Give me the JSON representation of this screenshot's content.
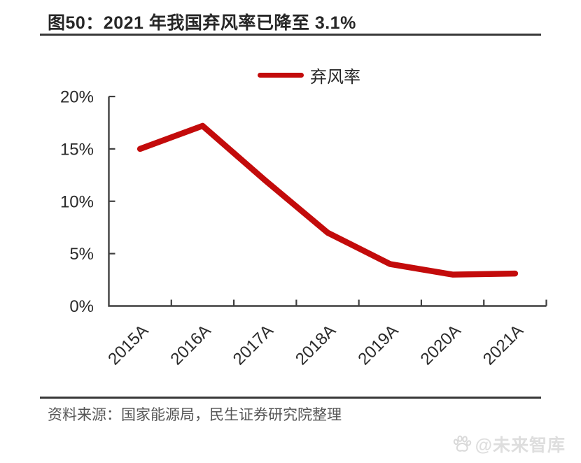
{
  "title": "图50：2021 年我国弃风率已降至 3.1%",
  "legend": {
    "label": "弃风率"
  },
  "source": "资料来源：国家能源局，民生证券研究院整理",
  "watermark": {
    "icon": "paw-icon",
    "text": "@未来智库"
  },
  "colors": {
    "line": "#C30B0B",
    "axis": "#3F3F3F",
    "text": "#2B2B2B",
    "title_text": "#262626",
    "rule": "#383838",
    "source_text": "#555555",
    "watermark": "#DEDEDE"
  },
  "chart_data": {
    "type": "line",
    "title": "图50：2021 年我国弃风率已降至 3.1%",
    "categories": [
      "2015A",
      "2016A",
      "2017A",
      "2018A",
      "2019A",
      "2020A",
      "2021A"
    ],
    "series": [
      {
        "name": "弃风率",
        "values": [
          15.0,
          17.2,
          12.0,
          7.0,
          4.0,
          3.0,
          3.1
        ]
      }
    ],
    "xlabel": "",
    "ylabel": "",
    "ylim": [
      0,
      20
    ],
    "y_ticks": [
      {
        "value": 0,
        "label": "0%"
      },
      {
        "value": 5,
        "label": "5%"
      },
      {
        "value": 10,
        "label": "10%"
      },
      {
        "value": 15,
        "label": "15%"
      },
      {
        "value": 20,
        "label": "20%"
      }
    ],
    "grid": false,
    "legend_position": "top-center",
    "x_label_rotation": -45
  }
}
